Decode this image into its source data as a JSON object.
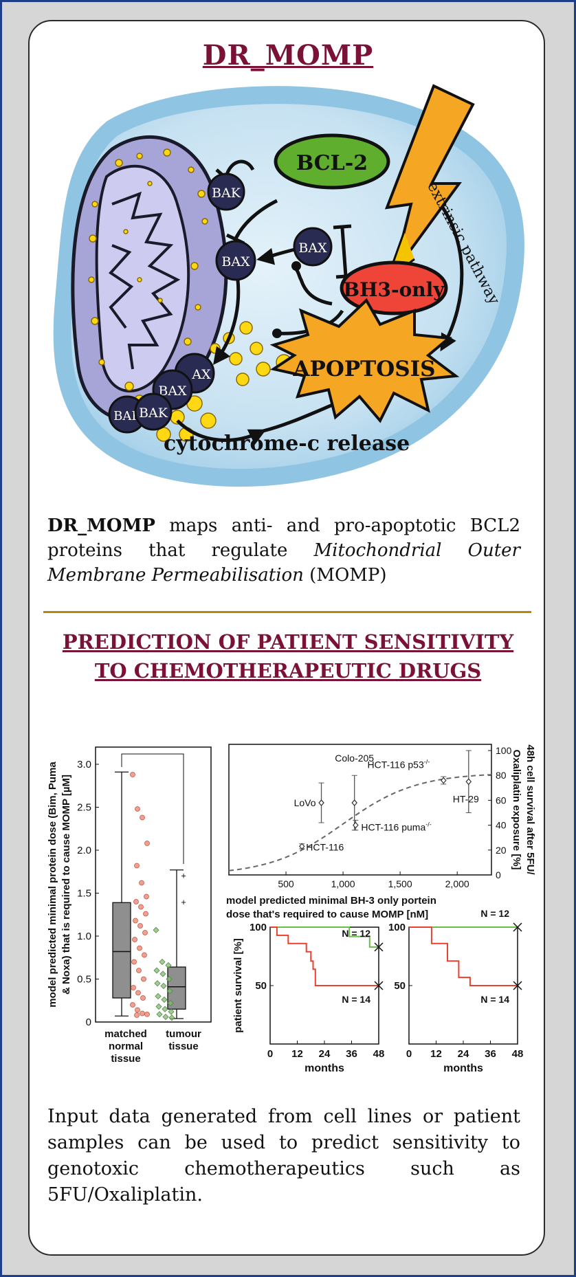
{
  "title": "DR_MOMP",
  "diagram": {
    "labels": {
      "bcl2": "BCL-2",
      "bax": "BAX",
      "bak": "BAK",
      "bax_partial": "AX",
      "bak_partial": "BAK",
      "bh3": "BH3-only",
      "apoptosis": "APOPTOSIS",
      "cytochrome": "cytochrome-c release",
      "extrinsic": "extrinsic pathway"
    },
    "colors": {
      "bcl2": "#5fae2e",
      "bh3": "#ef4438",
      "apoptosis": "#f5a623",
      "protein": "#2a2b52",
      "mito": "#b6b4e0",
      "cell": "#93c9e6",
      "granule": "#ffd814"
    }
  },
  "intro": {
    "bold": "DR_MOMP",
    "text1": " maps anti- and pro-apoptotic BCL2 proteins that regulate ",
    "italic": "Mitochondrial Outer Membrane Permeabilisation",
    "text2": " (MOMP)"
  },
  "section2": {
    "line1": "PREDICTION OF PATIENT SENSITIVITY",
    "line2": "TO CHEMOTHERAPEUTIC DRUGS"
  },
  "chart_data": [
    {
      "type": "box",
      "ylabel": "model predicted minimal protein dose (Bim, Puma & Noxa) that is required to cause MOMP [µM]",
      "ylim": [
        0,
        3.2
      ],
      "yticks": [
        0,
        0.5,
        1,
        1.5,
        2,
        2.5,
        3
      ],
      "ytick_labels": [
        "0",
        "0.5",
        "1.0",
        "1.5",
        "2.0",
        "2.5",
        "3.0"
      ],
      "groups": [
        {
          "name_lines": [
            "matched",
            "normal",
            "tissue"
          ],
          "color": "#e9806f",
          "min": 0.07,
          "q1": 0.28,
          "median": 0.82,
          "q3": 1.39,
          "max": 2.91,
          "points": [
            2.88,
            2.48,
            2.38,
            2.08,
            1.82,
            1.62,
            1.46,
            1.4,
            1.34,
            1.26,
            1.18,
            1.12,
            1.04,
            0.96,
            0.86,
            0.78,
            0.7,
            0.6,
            0.5,
            0.4,
            0.34,
            0.28,
            0.2,
            0.14,
            0.1,
            0.09,
            0.08
          ]
        },
        {
          "name_lines": [
            "tumour",
            "tissue"
          ],
          "color": "#86b877",
          "min": 0.04,
          "q1": 0.15,
          "median": 0.41,
          "q3": 0.64,
          "max": 1.77,
          "outliers": [
            1.4,
            1.71
          ],
          "points": [
            1.07,
            0.7,
            0.66,
            0.6,
            0.56,
            0.5,
            0.45,
            0.42,
            0.36,
            0.3,
            0.26,
            0.22,
            0.18,
            0.15,
            0.12,
            0.09,
            0.06,
            0.05
          ]
        }
      ]
    },
    {
      "type": "scatter",
      "xlabel": "model predicted minimal BH-3 only portein dose that's required to cause MOMP [nM]",
      "ylabel": "48h cell survival after 5FU/ Oxaliplatin exposure [%]",
      "xlim": [
        0,
        2300
      ],
      "ylim": [
        0,
        105
      ],
      "xticks": [
        500,
        1000,
        1500,
        2000
      ],
      "xtick_labels": [
        "500",
        "1,000",
        "1,500",
        "2,000"
      ],
      "yticks": [
        0,
        20,
        40,
        60,
        80,
        100
      ],
      "ytick_labels": [
        "0",
        "20",
        "40",
        "60",
        "80",
        "100"
      ],
      "points": [
        {
          "label": "LoVo",
          "x": 810,
          "y": 58,
          "err": 16
        },
        {
          "label": "Colo-205",
          "x": 1100,
          "y": 58,
          "err": 22
        },
        {
          "label": "HCT-116 puma",
          "sup": "-/-",
          "x": 1110,
          "y": 40,
          "err": 4
        },
        {
          "label": "HCT-116",
          "x": 640,
          "y": 23,
          "err": 2
        },
        {
          "label": "HCT-116 p53",
          "sup": "-/-",
          "x": 1880,
          "y": 76,
          "err": 3
        },
        {
          "label": "HT-29",
          "x": 2100,
          "y": 75,
          "err": 25
        }
      ],
      "fit": "sigmoid"
    },
    {
      "type": "line",
      "ylabel": "patient survival [%]",
      "xlabel": "months",
      "xlim": [
        0,
        48
      ],
      "ylim": [
        0,
        100
      ],
      "xticks": [
        0,
        12,
        24,
        36,
        48
      ],
      "yticks": [
        50,
        100
      ],
      "series": [
        {
          "name": "N = 12",
          "color": "#6cbd45",
          "x": [
            0,
            35,
            35,
            44,
            44,
            48
          ],
          "y": [
            100,
            100,
            92,
            92,
            83,
            83
          ]
        },
        {
          "name": "N = 14",
          "color": "#e8412f",
          "x": [
            0,
            3,
            3,
            8,
            8,
            16,
            16,
            18,
            18,
            19,
            19,
            20,
            20,
            48
          ],
          "y": [
            100,
            100,
            93,
            93,
            86,
            86,
            79,
            79,
            71,
            71,
            64,
            64,
            50,
            50
          ]
        }
      ]
    },
    {
      "type": "line",
      "xlabel": "months",
      "xlim": [
        0,
        48
      ],
      "ylim": [
        0,
        100
      ],
      "xticks": [
        0,
        12,
        24,
        36,
        48
      ],
      "yticks": [
        50,
        100
      ],
      "series": [
        {
          "name": "N = 12",
          "color": "#6cbd45",
          "x": [
            0,
            48
          ],
          "y": [
            100,
            100
          ]
        },
        {
          "name": "N = 14",
          "color": "#e8412f",
          "x": [
            0,
            10,
            10,
            17,
            17,
            22,
            22,
            27,
            27,
            33,
            33,
            48
          ],
          "y": [
            100,
            100,
            86,
            86,
            71,
            71,
            57,
            57,
            50,
            50,
            50,
            50
          ]
        }
      ]
    }
  ],
  "conclusion": "Input data generated from cell lines or patient samples can be used to predict sensitivity to genotoxic chemotherapeutics such as 5FU/Oxaliplatin."
}
